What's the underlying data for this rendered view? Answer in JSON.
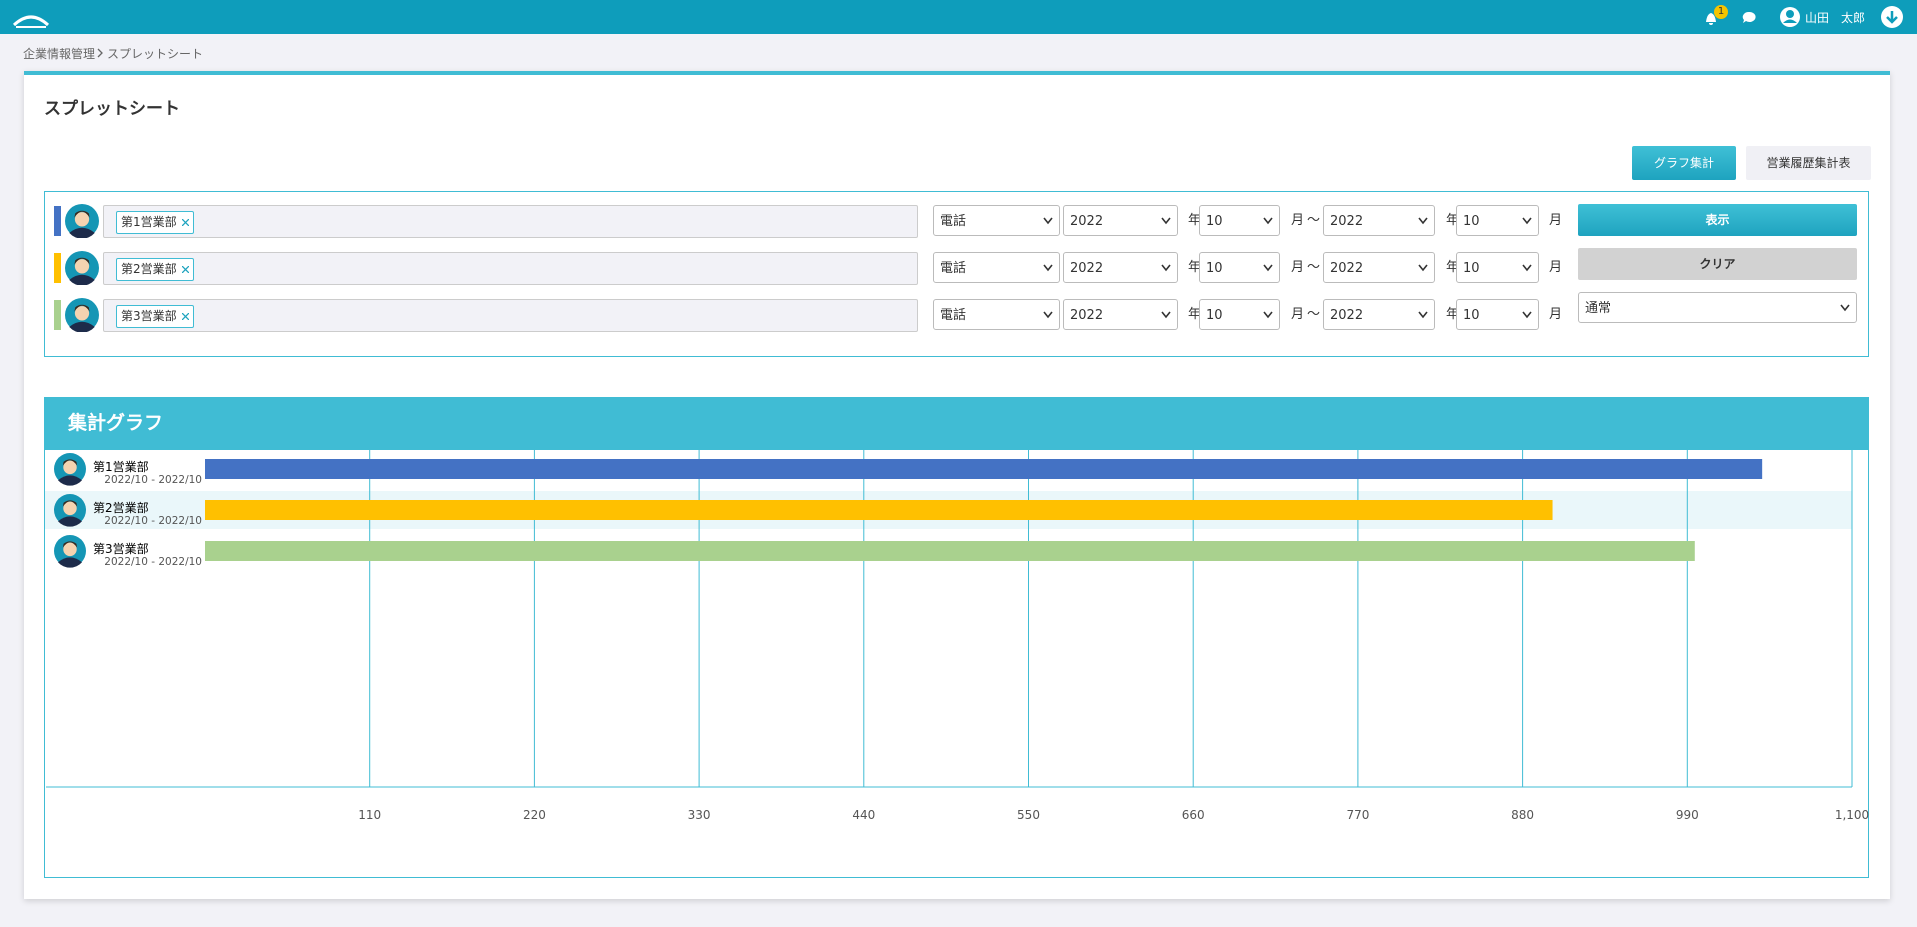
{
  "header": {
    "notification_count": "1",
    "user_name": "山田　太郎"
  },
  "breadcrumb": [
    "企業情報管理",
    "スプレットシート"
  ],
  "page_title": "スプレットシート",
  "tabs": [
    "グラフ集計",
    "営業履歴集計表"
  ],
  "labels": {
    "year": "年",
    "month": "月",
    "tilde": "～"
  },
  "filters": [
    {
      "color": "#4472c4",
      "tag": "第1営業部",
      "method": "電話",
      "from_year": "2022",
      "from_month": "10",
      "to_year": "2022",
      "to_month": "10"
    },
    {
      "color": "#ffc000",
      "tag": "第2営業部",
      "method": "電話",
      "from_year": "2022",
      "from_month": "10",
      "to_year": "2022",
      "to_month": "10"
    },
    {
      "color": "#a9d18e",
      "tag": "第3営業部",
      "method": "電話",
      "from_year": "2022",
      "from_month": "10",
      "to_year": "2022",
      "to_month": "10"
    }
  ],
  "buttons": {
    "show": "表示",
    "clear": "クリア",
    "mode": "通常"
  },
  "chart_data": {
    "type": "bar",
    "orientation": "horizontal",
    "title": "集計グラフ",
    "categories": [
      "第1営業部",
      "第2営業部",
      "第3営業部"
    ],
    "periods": [
      "2022/10 - 2022/10",
      "2022/10 - 2022/10",
      "2022/10 - 2022/10"
    ],
    "values": [
      1040,
      900,
      995
    ],
    "colors": [
      "#4472c4",
      "#ffc000",
      "#a9d18e"
    ],
    "xlim": [
      0,
      1100
    ],
    "xticks": [
      110,
      220,
      330,
      440,
      550,
      660,
      770,
      880,
      990,
      {
        "value": 1100,
        "label": "1,100"
      }
    ],
    "grid": true
  }
}
